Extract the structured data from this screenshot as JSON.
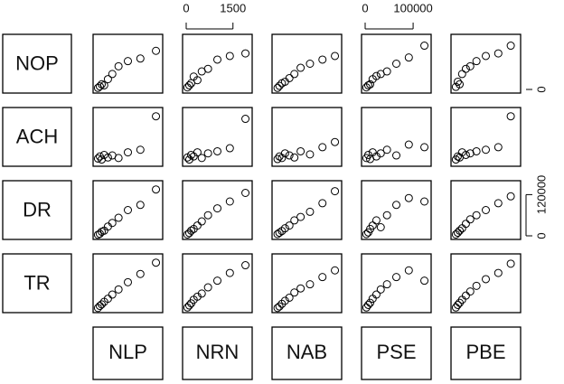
{
  "row_labels": [
    "NOP",
    "ACH",
    "DR",
    "TR"
  ],
  "column_labels": [
    "NLP",
    "NRN",
    "NAB",
    "PSE",
    "PBE"
  ],
  "chart_data": [
    {
      "type": "scatter",
      "xlim": [
        0,
        100
      ],
      "ylim": [
        0,
        100
      ],
      "x": [
        2,
        5,
        8,
        12,
        18,
        25,
        35,
        50,
        70,
        95
      ],
      "y": [
        3,
        6,
        10,
        8,
        20,
        30,
        45,
        55,
        60,
        75
      ]
    },
    {
      "type": "scatter",
      "xlim": [
        0,
        2000
      ],
      "ylim": [
        0,
        100
      ],
      "xticks": [
        0,
        1500
      ],
      "x": [
        40,
        100,
        160,
        240,
        360,
        500,
        700,
        1000,
        1400,
        1900
      ],
      "y": [
        4,
        8,
        12,
        25,
        18,
        35,
        40,
        58,
        65,
        70
      ]
    },
    {
      "type": "scatter",
      "xlim": [
        0,
        100
      ],
      "ylim": [
        0,
        100
      ],
      "x": [
        3,
        6,
        10,
        15,
        22,
        30,
        40,
        55,
        75,
        95
      ],
      "y": [
        3,
        7,
        12,
        15,
        22,
        30,
        42,
        50,
        58,
        65
      ]
    },
    {
      "type": "scatter",
      "xlim": [
        0,
        130000
      ],
      "ylim": [
        0,
        100
      ],
      "xticks": [
        0,
        100000
      ],
      "x": [
        2600,
        6500,
        10400,
        15600,
        23400,
        32500,
        45500,
        65000,
        91000,
        123500
      ],
      "y": [
        4,
        8,
        10,
        20,
        26,
        30,
        35,
        50,
        62,
        85
      ]
    },
    {
      "type": "scatter",
      "xlim": [
        0,
        100
      ],
      "ylim": [
        0,
        100
      ],
      "yticks": [
        0
      ],
      "x": [
        2,
        5,
        8,
        12,
        18,
        25,
        35,
        50,
        70,
        90
      ],
      "y": [
        5,
        15,
        10,
        30,
        40,
        45,
        55,
        65,
        70,
        85
      ]
    },
    {
      "type": "scatter",
      "xlim": [
        0,
        100
      ],
      "ylim": [
        0,
        100
      ],
      "x": [
        2,
        5,
        8,
        12,
        18,
        25,
        35,
        50,
        70,
        95
      ],
      "y": [
        8,
        12,
        6,
        15,
        10,
        14,
        9,
        20,
        25,
        90
      ]
    },
    {
      "type": "scatter",
      "xlim": [
        0,
        2000
      ],
      "ylim": [
        0,
        100
      ],
      "x": [
        40,
        100,
        160,
        240,
        360,
        500,
        700,
        1000,
        1400,
        1900
      ],
      "y": [
        10,
        6,
        15,
        12,
        20,
        9,
        18,
        22,
        28,
        85
      ]
    },
    {
      "type": "scatter",
      "xlim": [
        0,
        100
      ],
      "ylim": [
        0,
        100
      ],
      "x": [
        3,
        6,
        10,
        15,
        22,
        30,
        40,
        55,
        75,
        95
      ],
      "y": [
        7,
        12,
        9,
        18,
        14,
        10,
        22,
        16,
        30,
        40
      ]
    },
    {
      "type": "scatter",
      "xlim": [
        0,
        130000
      ],
      "ylim": [
        0,
        100
      ],
      "x": [
        2600,
        6500,
        10400,
        15600,
        23400,
        32500,
        45500,
        65000,
        91000,
        123500
      ],
      "y": [
        9,
        15,
        7,
        20,
        12,
        18,
        25,
        14,
        35,
        30
      ]
    },
    {
      "type": "scatter",
      "xlim": [
        0,
        100
      ],
      "ylim": [
        0,
        100
      ],
      "x": [
        2,
        5,
        8,
        12,
        18,
        25,
        35,
        50,
        70,
        90
      ],
      "y": [
        6,
        12,
        10,
        20,
        15,
        18,
        22,
        25,
        30,
        90
      ]
    },
    {
      "type": "scatter",
      "xlim": [
        0,
        100
      ],
      "ylim": [
        0,
        150000
      ],
      "x": [
        2,
        5,
        8,
        12,
        18,
        25,
        35,
        50,
        70,
        95
      ],
      "y": [
        3000,
        6000,
        12000,
        15000,
        27000,
        37500,
        52500,
        75000,
        90000,
        135000
      ]
    },
    {
      "type": "scatter",
      "xlim": [
        0,
        2000
      ],
      "ylim": [
        0,
        150000
      ],
      "x": [
        40,
        100,
        160,
        240,
        360,
        500,
        700,
        1000,
        1400,
        1900
      ],
      "y": [
        4000,
        8000,
        15000,
        20000,
        30000,
        42000,
        60000,
        80000,
        100000,
        125000
      ]
    },
    {
      "type": "scatter",
      "xlim": [
        0,
        100
      ],
      "ylim": [
        0,
        150000
      ],
      "x": [
        3,
        6,
        10,
        15,
        22,
        30,
        40,
        55,
        75,
        95
      ],
      "y": [
        5000,
        9000,
        14000,
        22000,
        30000,
        45000,
        55000,
        70000,
        95000,
        130000
      ]
    },
    {
      "type": "scatter",
      "xlim": [
        0,
        130000
      ],
      "ylim": [
        0,
        150000
      ],
      "x": [
        2600,
        6500,
        10400,
        15600,
        23400,
        32500,
        45500,
        65000,
        91000,
        123500
      ],
      "y": [
        5000,
        10000,
        20000,
        30000,
        45000,
        25000,
        60000,
        90000,
        110000,
        100000
      ]
    },
    {
      "type": "scatter",
      "xlim": [
        0,
        100
      ],
      "ylim": [
        0,
        150000
      ],
      "yticks": [
        0,
        120000
      ],
      "x": [
        2,
        5,
        8,
        12,
        18,
        25,
        35,
        50,
        70,
        90
      ],
      "y": [
        4000,
        9000,
        15000,
        22000,
        35000,
        48000,
        60000,
        75000,
        95000,
        115000
      ]
    },
    {
      "type": "scatter",
      "xlim": [
        0,
        100
      ],
      "ylim": [
        0,
        100
      ],
      "x": [
        2,
        5,
        8,
        12,
        18,
        25,
        35,
        50,
        70,
        95
      ],
      "y": [
        2,
        6,
        9,
        14,
        20,
        28,
        38,
        52,
        68,
        90
      ]
    },
    {
      "type": "scatter",
      "xlim": [
        0,
        2000
      ],
      "ylim": [
        0,
        100
      ],
      "x": [
        40,
        100,
        160,
        240,
        360,
        500,
        700,
        1000,
        1400,
        1900
      ],
      "y": [
        3,
        7,
        11,
        18,
        24,
        30,
        42,
        55,
        70,
        85
      ]
    },
    {
      "type": "scatter",
      "xlim": [
        0,
        100
      ],
      "ylim": [
        0,
        100
      ],
      "x": [
        3,
        6,
        10,
        15,
        22,
        30,
        40,
        55,
        75,
        95
      ],
      "y": [
        2,
        5,
        10,
        16,
        22,
        32,
        40,
        48,
        62,
        75
      ]
    },
    {
      "type": "scatter",
      "xlim": [
        0,
        130000
      ],
      "ylim": [
        0,
        100
      ],
      "x": [
        2600,
        6500,
        10400,
        15600,
        23400,
        32500,
        45500,
        65000,
        91000,
        123500
      ],
      "y": [
        3,
        8,
        12,
        20,
        28,
        38,
        48,
        62,
        75,
        55
      ]
    },
    {
      "type": "scatter",
      "xlim": [
        0,
        100
      ],
      "ylim": [
        0,
        100
      ],
      "x": [
        2,
        5,
        8,
        12,
        18,
        25,
        35,
        50,
        70,
        90
      ],
      "y": [
        3,
        8,
        12,
        18,
        26,
        34,
        45,
        58,
        70,
        88
      ]
    }
  ]
}
